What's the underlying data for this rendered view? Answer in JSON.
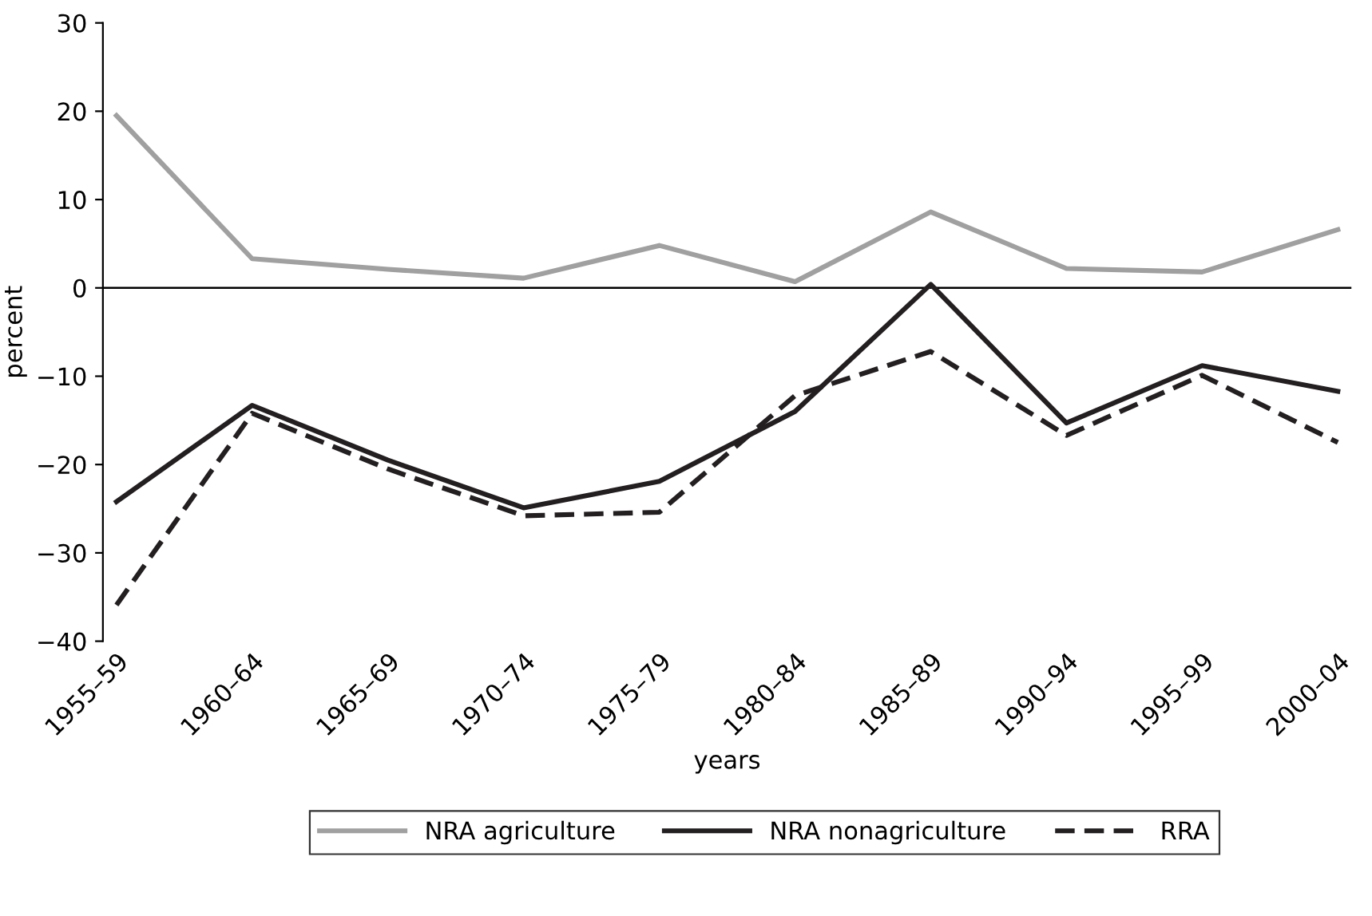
{
  "chart_data": {
    "type": "line",
    "xlabel": "years",
    "ylabel": "percent",
    "categories": [
      "1955–59",
      "1960–64",
      "1965–69",
      "1970–74",
      "1975–79",
      "1980–84",
      "1985–89",
      "1990–94",
      "1995–99",
      "2000–04"
    ],
    "series": [
      {
        "name": "NRA agriculture",
        "color": "#a0a0a0",
        "line_style": "solid",
        "values": [
          19.5,
          3.3,
          2.1,
          1.1,
          4.8,
          0.7,
          8.6,
          2.2,
          1.8,
          6.6
        ]
      },
      {
        "name": "NRA nonagriculture",
        "color": "#231f20",
        "line_style": "solid",
        "values": [
          -24.2,
          -13.3,
          -19.5,
          -24.9,
          -21.9,
          -14.0,
          0.4,
          -15.3,
          -8.8,
          -11.7
        ]
      },
      {
        "name": "RRA",
        "color": "#231f20",
        "line_style": "dashed",
        "values": [
          -35.9,
          -14.2,
          -20.5,
          -25.8,
          -25.4,
          -12.2,
          -7.2,
          -16.7,
          -9.9,
          -17.5
        ]
      }
    ],
    "ylim": [
      -40,
      30
    ],
    "yticks": [
      -40,
      -30,
      -20,
      -10,
      0,
      10,
      20,
      30
    ],
    "ref_lines": [
      {
        "axis": "y",
        "value": 0,
        "color": "#000000"
      }
    ],
    "grid": false,
    "legend": "bottom",
    "marker": "none"
  }
}
